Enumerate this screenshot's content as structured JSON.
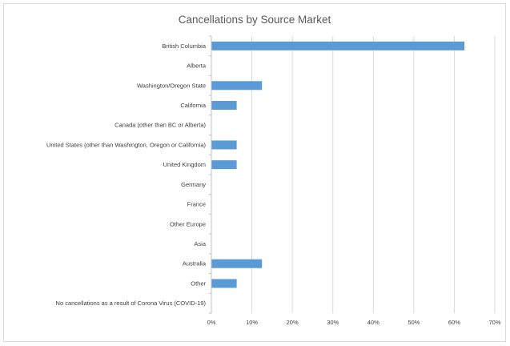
{
  "chart_data": {
    "type": "bar",
    "orientation": "horizontal",
    "title": "Cancellations by Source Market",
    "categories": [
      "British Columbia",
      "Alberta",
      "Washington/Oregon State",
      "California",
      "Canada (other than BC or Alberta)",
      "United States (other than Washington, Oregon or California)",
      "United Kingdom",
      "Germany",
      "France",
      "Other Europe",
      "Asia",
      "Australia",
      "Other",
      "No cancellations as a result of Corona Virus (COVID-19)"
    ],
    "values": [
      62.5,
      0,
      12.5,
      6.25,
      0,
      6.25,
      6.25,
      0,
      0,
      0,
      0,
      12.5,
      6.25,
      0
    ],
    "xlim": [
      0,
      70
    ],
    "xticks": [
      "0%",
      "10%",
      "20%",
      "30%",
      "40%",
      "50%",
      "60%",
      "70%"
    ],
    "grid": "vertical",
    "bar_color": "#5b9bd5",
    "grid_color": "#d9d9d9",
    "axis_color": "#bfbfbf"
  }
}
